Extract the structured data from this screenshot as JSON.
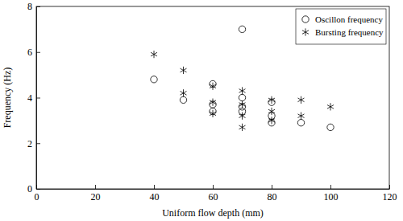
{
  "chart_data": {
    "type": "scatter",
    "x_label": "Uniform flow depth (mm)",
    "y_label": "Frequency (Hz)",
    "xlim": [
      0,
      120
    ],
    "xticks": [
      0,
      20,
      40,
      60,
      80,
      100,
      120
    ],
    "ylim": [
      0,
      8
    ],
    "yticks": [
      0,
      2,
      4,
      6,
      8
    ],
    "legend": "upper right",
    "series": [
      {
        "name": "Oscillon frequency",
        "color": "#000000",
        "marker": "circle",
        "x": [
          40,
          50,
          60,
          60,
          60,
          70,
          70,
          70,
          70,
          80,
          80,
          80,
          90,
          100
        ],
        "values": [
          4.8,
          3.9,
          4.6,
          3.7,
          3.4,
          7.0,
          4.0,
          3.6,
          3.4,
          3.8,
          3.2,
          2.9,
          2.9,
          2.7
        ]
      },
      {
        "name": "Bursting frequency",
        "color": "#000000",
        "marker": "asterisk",
        "x": [
          40,
          50,
          50,
          60,
          60,
          60,
          70,
          70,
          70,
          70,
          80,
          80,
          80,
          90,
          90,
          100
        ],
        "values": [
          5.9,
          5.2,
          4.2,
          4.5,
          3.8,
          3.3,
          4.3,
          3.7,
          3.2,
          2.7,
          3.9,
          3.4,
          3.0,
          3.9,
          3.2,
          3.6
        ]
      }
    ]
  }
}
